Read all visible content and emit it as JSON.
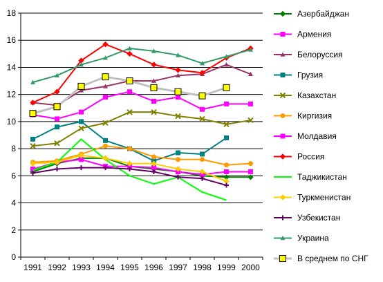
{
  "chart_data": {
    "type": "line",
    "title": "",
    "xlabel": "",
    "ylabel": "",
    "x": [
      "1991",
      "1992",
      "1993",
      "1994",
      "1995",
      "1996",
      "1997",
      "1998",
      "1999",
      "2000"
    ],
    "ylim": [
      0,
      18
    ],
    "y_ticks": [
      0,
      2,
      4,
      6,
      8,
      10,
      12,
      14,
      16,
      18
    ],
    "grid": "horizontal",
    "legend_position": "right",
    "series": [
      {
        "name": "Азербайджан",
        "color": "#008000",
        "marker": "diamond",
        "values": [
          6.3,
          6.9,
          7.3,
          7.3,
          6.7,
          6.5,
          6.3,
          6.0,
          5.9,
          5.9
        ]
      },
      {
        "name": "Армения",
        "color": "#ff00ff",
        "marker": "square",
        "values": [
          6.5,
          7.0,
          7.2,
          6.7,
          6.7,
          6.6,
          6.3,
          6.1,
          6.3,
          6.3
        ]
      },
      {
        "name": "Белоруссия",
        "color": "#993366",
        "marker": "triangle",
        "values": [
          11.4,
          11.2,
          12.3,
          12.6,
          13.0,
          13.0,
          13.4,
          13.5,
          14.2,
          13.5
        ]
      },
      {
        "name": "Грузия",
        "color": "#008080",
        "marker": "square",
        "values": [
          8.7,
          9.6,
          10.0,
          8.6,
          8.0,
          7.1,
          7.7,
          7.6,
          8.8,
          null
        ]
      },
      {
        "name": "Казахстан",
        "color": "#808000",
        "marker": "x",
        "values": [
          8.2,
          8.4,
          9.5,
          9.9,
          10.7,
          10.7,
          10.4,
          10.2,
          9.8,
          10.1
        ]
      },
      {
        "name": "Киргизия",
        "color": "#ff9900",
        "marker": "circle",
        "values": [
          7.0,
          7.1,
          7.6,
          8.2,
          8.0,
          7.4,
          7.2,
          7.2,
          6.8,
          6.9
        ]
      },
      {
        "name": "Молдавия",
        "color": "#ff00ff",
        "marker": "square",
        "values": [
          10.5,
          10.2,
          10.7,
          11.8,
          12.2,
          11.5,
          11.8,
          10.9,
          11.3,
          11.3
        ]
      },
      {
        "name": "Россия",
        "color": "#ff0000",
        "marker": "diamond",
        "values": [
          11.4,
          12.2,
          14.5,
          15.7,
          15.0,
          14.2,
          13.8,
          13.6,
          14.7,
          15.4
        ]
      },
      {
        "name": "Таджикистан",
        "color": "#00ff00",
        "marker": "none",
        "values": [
          6.4,
          7.0,
          8.7,
          7.2,
          6.0,
          5.4,
          5.9,
          4.8,
          4.2,
          null
        ]
      },
      {
        "name": "Туркменистан",
        "color": "#ffcc00",
        "marker": "diamond",
        "values": [
          6.9,
          7.0,
          7.5,
          7.3,
          6.9,
          6.9,
          6.5,
          6.3,
          5.6,
          null
        ]
      },
      {
        "name": "Узбекистан",
        "color": "#660066",
        "marker": "plus",
        "values": [
          6.2,
          6.5,
          6.6,
          6.6,
          6.5,
          6.3,
          5.9,
          5.8,
          5.3,
          null
        ]
      },
      {
        "name": "Украина",
        "color": "#339966",
        "marker": "triangle",
        "values": [
          12.9,
          13.4,
          14.2,
          14.7,
          15.4,
          15.2,
          14.9,
          14.3,
          14.8,
          15.3
        ]
      },
      {
        "name": "В среднем по СНГ",
        "color": "#c0c0c0",
        "marker": "square-yellow",
        "values": [
          10.6,
          11.1,
          12.6,
          13.3,
          13.0,
          12.5,
          12.2,
          11.9,
          12.5,
          null
        ]
      }
    ]
  }
}
